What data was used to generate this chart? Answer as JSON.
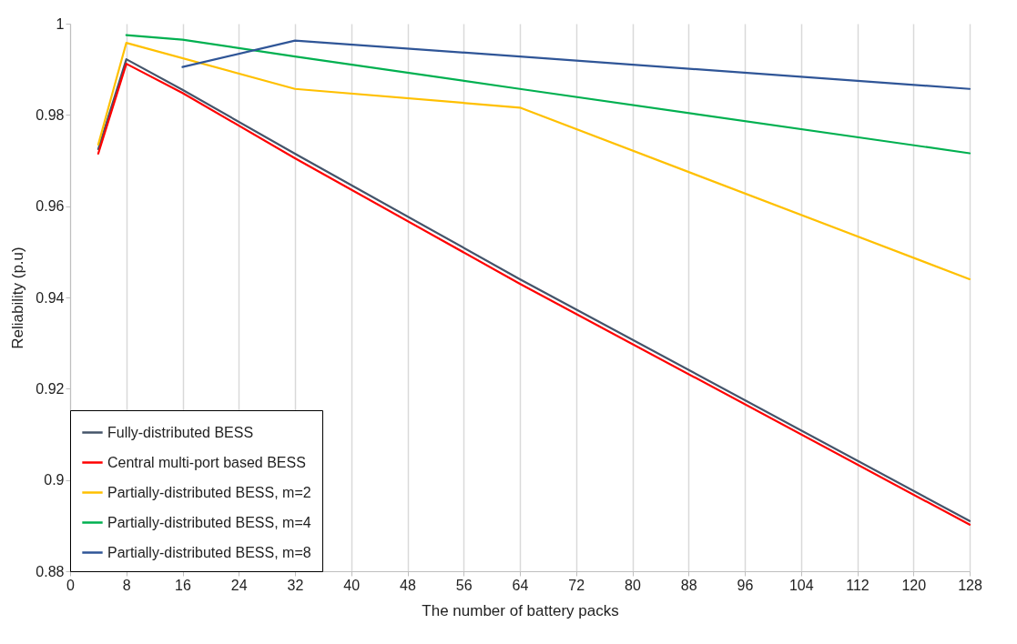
{
  "chart_data": {
    "type": "line",
    "xlabel": "The number of battery packs",
    "ylabel": "Reliability (p.u)",
    "xlim": [
      0,
      128
    ],
    "xticks": [
      0,
      8,
      16,
      24,
      32,
      40,
      48,
      56,
      64,
      72,
      80,
      88,
      96,
      104,
      112,
      120,
      128
    ],
    "ylim": [
      0.88,
      1
    ],
    "yticks": [
      0.88,
      0.9,
      0.92,
      0.94,
      0.96,
      0.98,
      1
    ],
    "grid": "x",
    "legend": "bottom left",
    "marker": "none",
    "line_style": "solid",
    "series": [
      {
        "name": "Fully-distributed BESS",
        "color": "#44546a",
        "x": [
          4,
          8,
          16,
          32,
          64,
          128
        ],
        "values": [
          0.9725,
          0.9922,
          0.9855,
          0.9715,
          0.944,
          0.891
        ]
      },
      {
        "name": "Central multi-port based BESS",
        "color": "#ff0000",
        "x": [
          4,
          8,
          16,
          32,
          64,
          128
        ],
        "values": [
          0.9715,
          0.9912,
          0.9848,
          0.9705,
          0.943,
          0.8902
        ]
      },
      {
        "name": "Partially-distributed BESS, m=2",
        "color": "#ffc000",
        "x": [
          4,
          8,
          32,
          64,
          128
        ],
        "values": [
          0.9735,
          0.9958,
          0.9857,
          0.9816,
          0.944
        ]
      },
      {
        "name": "Partially-distributed BESS, m=4",
        "color": "#00b050",
        "x": [
          8,
          16,
          32,
          64,
          128
        ],
        "values": [
          0.9975,
          0.9965,
          0.9928,
          0.9857,
          0.9716
        ]
      },
      {
        "name": "Partially-distributed BESS, m=8",
        "color": "#2f5597",
        "x": [
          16,
          32,
          64,
          128
        ],
        "values": [
          0.9905,
          0.9963,
          0.9928,
          0.9857
        ]
      }
    ]
  }
}
